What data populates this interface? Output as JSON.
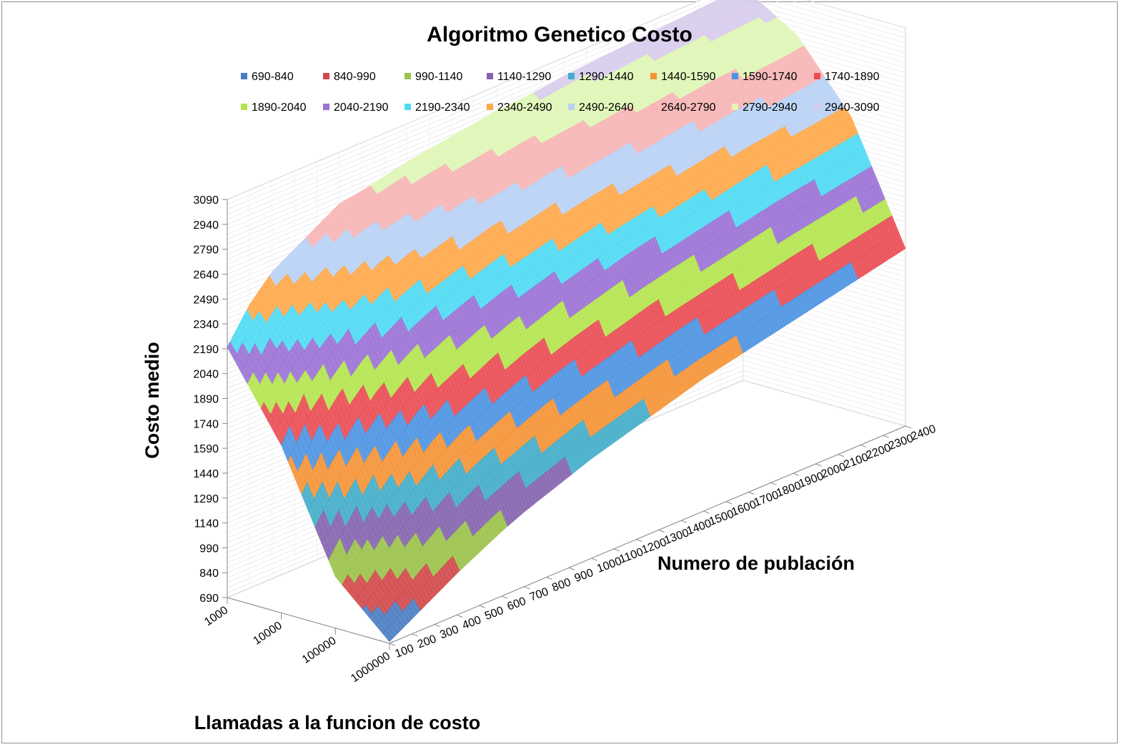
{
  "chart_data": {
    "type": "surface",
    "title": "Algoritmo Genetico Costo",
    "zlabel": "Costo medio",
    "xlabel": "Numero de publación",
    "ylabel": "Llamadas a la funcion de costo",
    "z_ticks": [
      690,
      840,
      990,
      1140,
      1290,
      1440,
      1590,
      1740,
      1890,
      2040,
      2190,
      2340,
      2490,
      2640,
      2790,
      2940,
      3090
    ],
    "zlim": [
      690,
      3090
    ],
    "population": [
      100,
      200,
      300,
      400,
      500,
      600,
      700,
      800,
      900,
      1000,
      1100,
      1200,
      1300,
      1400,
      1500,
      1600,
      1700,
      1800,
      1900,
      2000,
      2100,
      2200,
      2300,
      2400
    ],
    "calls": [
      "1000",
      "10000",
      "100000",
      "1000000"
    ],
    "legend": [
      {
        "label": "690-840",
        "color": "#4a7cc2"
      },
      {
        "label": "840-990",
        "color": "#d2484a"
      },
      {
        "label": "990-1140",
        "color": "#9bc24a"
      },
      {
        "label": "1140-1290",
        "color": "#8464ae"
      },
      {
        "label": "1290-1440",
        "color": "#43adc9"
      },
      {
        "label": "1440-1590",
        "color": "#f59335"
      },
      {
        "label": "1590-1740",
        "color": "#4d93e2"
      },
      {
        "label": "1740-1890",
        "color": "#ea4d53"
      },
      {
        "label": "1890-2040",
        "color": "#b5e44f"
      },
      {
        "label": "2040-2190",
        "color": "#9b72d6"
      },
      {
        "label": "2190-2340",
        "color": "#4fdaf4"
      },
      {
        "label": "2340-2490",
        "color": "#ffa84a"
      },
      {
        "label": "2490-2640",
        "color": "#b9d1f5"
      },
      {
        "label": "2640-2790",
        "color": "#f7b5b5"
      },
      {
        "label": "2790-2940",
        "color": "#dff6b6"
      },
      {
        "label": "2940-3090",
        "color": "#d8ccec"
      }
    ],
    "series": [
      {
        "name": "1000",
        "values": [
          2200,
          2400,
          2540,
          2620,
          2700,
          2780,
          2800,
          2830,
          2860,
          2880,
          2900,
          2920,
          2940,
          2950,
          2960,
          2980,
          2990,
          3000,
          3010,
          3020,
          3030,
          3040,
          3050,
          3060
        ]
      },
      {
        "name": "10000",
        "values": [
          1700,
          1950,
          2100,
          2230,
          2320,
          2400,
          2460,
          2500,
          2540,
          2580,
          2600,
          2630,
          2660,
          2680,
          2700,
          2720,
          2740,
          2760,
          2780,
          2800,
          2810,
          2830,
          2840,
          2860
        ]
      },
      {
        "name": "100000",
        "values": [
          1000,
          1200,
          1400,
          1550,
          1680,
          1780,
          1850,
          1920,
          1980,
          2030,
          2080,
          2120,
          2160,
          2200,
          2230,
          2260,
          2290,
          2320,
          2350,
          2380,
          2400,
          2420,
          2440,
          2460
        ]
      },
      {
        "name": "1000000",
        "values": [
          700,
          780,
          860,
          940,
          1010,
          1080,
          1140,
          1190,
          1240,
          1290,
          1330,
          1370,
          1410,
          1450,
          1490,
          1520,
          1550,
          1580,
          1610,
          1640,
          1670,
          1700,
          1730,
          1760
        ]
      }
    ]
  }
}
